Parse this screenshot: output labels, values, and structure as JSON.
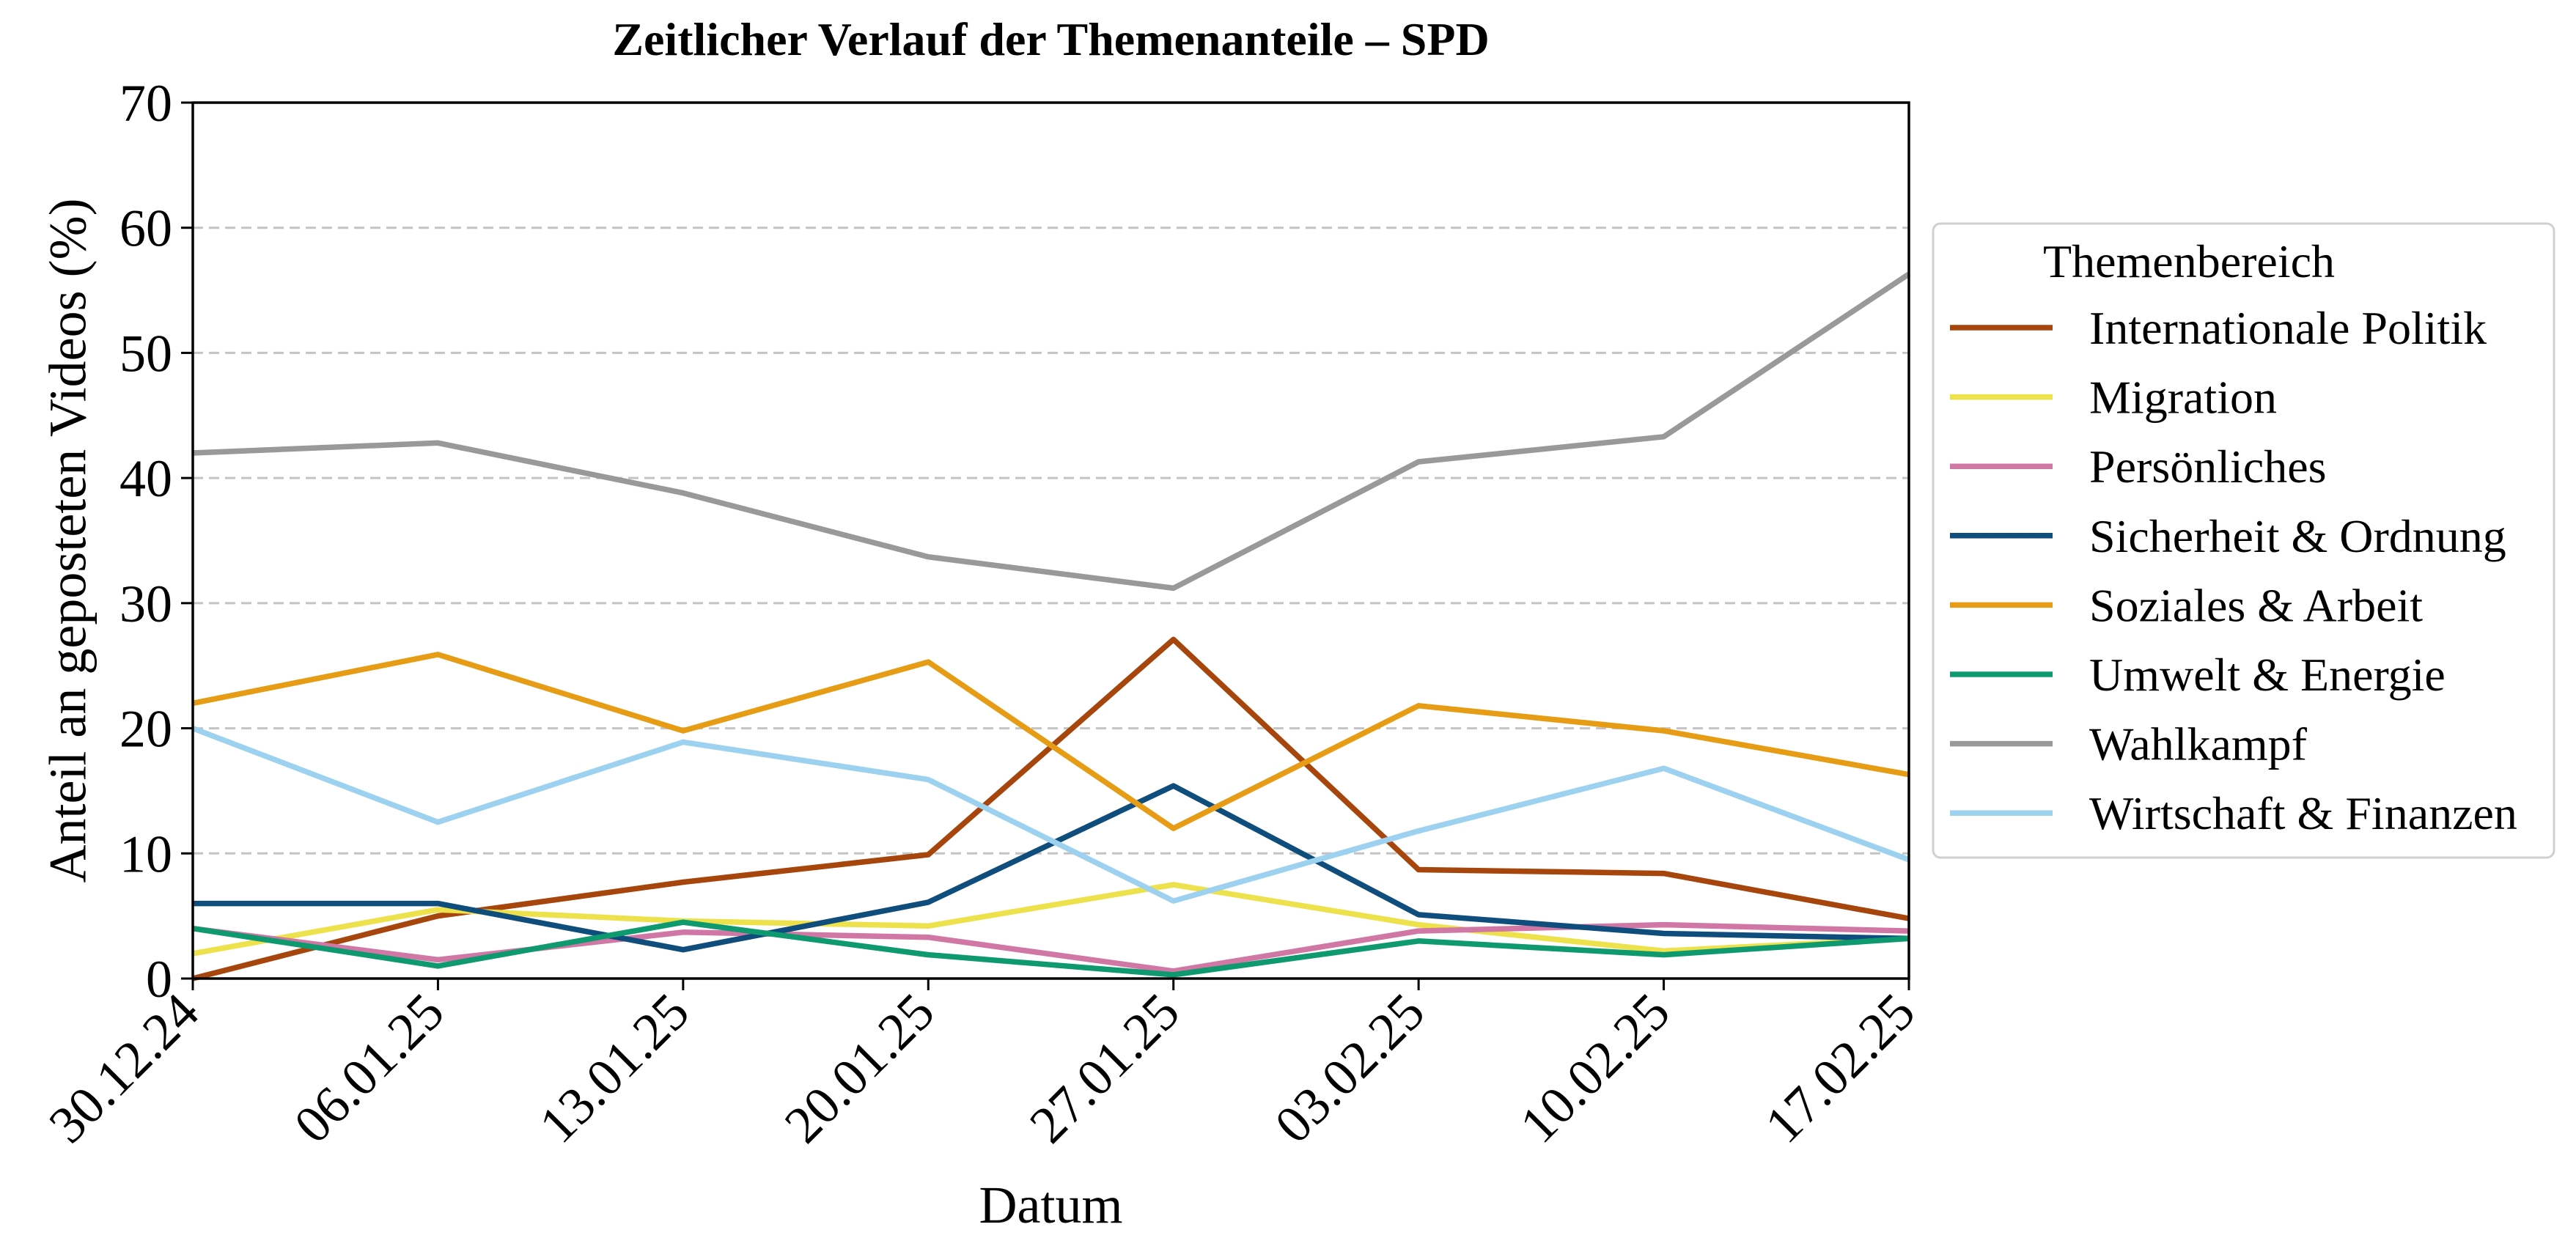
{
  "chart_data": {
    "type": "line",
    "title": "Zeitlicher Verlauf der Themenanteile – SPD",
    "xlabel": "Datum",
    "ylabel": "Anteil an geposteten Videos (%)",
    "x": [
      "30.12.24",
      "06.01.25",
      "13.01.25",
      "20.01.25",
      "27.01.25",
      "03.02.25",
      "10.02.25",
      "17.02.25"
    ],
    "ylim": [
      0,
      70
    ],
    "yticks": [
      0,
      10,
      20,
      30,
      40,
      50,
      60,
      70
    ],
    "grid": "horizontal dashed",
    "legend_title": "Themenbereich",
    "legend_position": "right outside",
    "series": [
      {
        "name": "Internationale Politik",
        "color": "#a6460d",
        "values": [
          0,
          5.0,
          7.7,
          9.9,
          27.1,
          8.7,
          8.4,
          4.8
        ]
      },
      {
        "name": "Migration",
        "color": "#ede14c",
        "values": [
          2.0,
          5.5,
          4.6,
          4.2,
          7.5,
          4.3,
          2.2,
          3.2
        ]
      },
      {
        "name": "Persönliches",
        "color": "#d177a6",
        "values": [
          4.0,
          1.5,
          3.7,
          3.3,
          0.6,
          3.8,
          4.3,
          3.8
        ]
      },
      {
        "name": "Sicherheit & Ordnung",
        "color": "#0f4d7d",
        "values": [
          6.0,
          6.0,
          2.3,
          6.1,
          15.4,
          5.1,
          3.6,
          3.2
        ]
      },
      {
        "name": "Soziales & Arbeit",
        "color": "#e69c14",
        "values": [
          22.0,
          25.9,
          19.8,
          25.3,
          12.0,
          21.8,
          19.8,
          16.3
        ]
      },
      {
        "name": "Umwelt & Energie",
        "color": "#0e9a6e",
        "values": [
          4.0,
          1.0,
          4.5,
          1.9,
          0.3,
          3.0,
          1.9,
          3.2
        ]
      },
      {
        "name": "Wahlkampf",
        "color": "#999999",
        "values": [
          42.0,
          42.8,
          38.8,
          33.7,
          31.2,
          41.3,
          43.3,
          56.3
        ]
      },
      {
        "name": "Wirtschaft & Finanzen",
        "color": "#9cd2f0",
        "values": [
          20.0,
          12.5,
          18.9,
          15.9,
          6.2,
          11.8,
          16.8,
          9.5
        ]
      }
    ]
  }
}
